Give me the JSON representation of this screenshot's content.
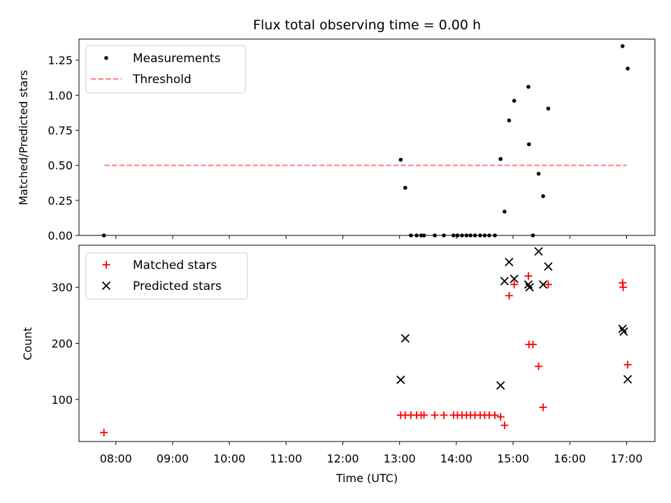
{
  "colors": {
    "measure": "#000000",
    "threshold": "#ff7f7f",
    "matched": "#ff0000",
    "predicted": "#000000"
  },
  "chart_data": [
    {
      "type": "scatter",
      "title": "Flux total observing time = 0.00 h",
      "ylabel": "Matched/Predicted stars",
      "ylim": [
        0,
        1.4
      ],
      "xlim_hours": [
        7.35,
        17.5
      ],
      "yticks": [
        0.0,
        0.25,
        0.5,
        0.75,
        1.0,
        1.25
      ],
      "ytick_labels": [
        "0.00",
        "0.25",
        "0.50",
        "0.75",
        "1.00",
        "1.25"
      ],
      "legend": {
        "placement": "top-left",
        "entries": [
          "Measurements",
          "Threshold"
        ]
      },
      "threshold": {
        "name": "Threshold",
        "value": 0.5,
        "x_start": 7.8,
        "x_end": 17.0
      },
      "series": [
        {
          "name": "Measurements",
          "points": [
            [
              7.79,
              0.0
            ],
            [
              13.02,
              0.54
            ],
            [
              13.1,
              0.34
            ],
            [
              13.2,
              0.0
            ],
            [
              13.3,
              0.0
            ],
            [
              13.38,
              0.0
            ],
            [
              13.43,
              0.0
            ],
            [
              13.62,
              0.0
            ],
            [
              13.78,
              0.0
            ],
            [
              13.95,
              0.0
            ],
            [
              14.02,
              0.0
            ],
            [
              14.1,
              0.0
            ],
            [
              14.18,
              0.0
            ],
            [
              14.25,
              0.0
            ],
            [
              14.33,
              0.0
            ],
            [
              14.42,
              0.0
            ],
            [
              14.5,
              0.0
            ],
            [
              14.58,
              0.0
            ],
            [
              14.68,
              0.0
            ],
            [
              14.78,
              0.545
            ],
            [
              14.85,
              0.17
            ],
            [
              14.93,
              0.82
            ],
            [
              15.02,
              0.96
            ],
            [
              15.27,
              1.06
            ],
            [
              15.28,
              0.65
            ],
            [
              15.35,
              0.0
            ],
            [
              15.45,
              0.44
            ],
            [
              15.53,
              0.28
            ],
            [
              15.62,
              0.905
            ],
            [
              16.93,
              1.35
            ],
            [
              17.02,
              1.19
            ]
          ]
        }
      ]
    },
    {
      "type": "scatter",
      "ylabel": "Count",
      "xlabel": "Time (UTC)",
      "ylim": [
        25,
        375
      ],
      "xlim_hours": [
        7.35,
        17.5
      ],
      "yticks": [
        100,
        200,
        300
      ],
      "ytick_labels": [
        "100",
        "200",
        "300"
      ],
      "xticks_hours": [
        8,
        9,
        10,
        11,
        12,
        13,
        14,
        15,
        16,
        17
      ],
      "xtick_labels": [
        "08:00",
        "09:00",
        "10:00",
        "11:00",
        "12:00",
        "13:00",
        "14:00",
        "15:00",
        "16:00",
        "17:00"
      ],
      "legend": {
        "placement": "top-left",
        "entries": [
          "Matched stars",
          "Predicted stars"
        ]
      },
      "series": [
        {
          "name": "Matched stars",
          "points": [
            [
              7.79,
              41
            ],
            [
              13.02,
              72
            ],
            [
              13.1,
              72
            ],
            [
              13.2,
              72
            ],
            [
              13.3,
              72
            ],
            [
              13.38,
              72
            ],
            [
              13.43,
              72
            ],
            [
              13.62,
              72
            ],
            [
              13.78,
              72
            ],
            [
              13.95,
              72
            ],
            [
              14.02,
              72
            ],
            [
              14.1,
              72
            ],
            [
              14.18,
              72
            ],
            [
              14.25,
              72
            ],
            [
              14.33,
              72
            ],
            [
              14.42,
              72
            ],
            [
              14.5,
              72
            ],
            [
              14.58,
              72
            ],
            [
              14.68,
              72
            ],
            [
              14.78,
              69
            ],
            [
              14.85,
              54
            ],
            [
              14.93,
              285
            ],
            [
              15.02,
              305
            ],
            [
              15.27,
              320
            ],
            [
              15.28,
              198
            ],
            [
              15.35,
              198
            ],
            [
              15.45,
              159
            ],
            [
              15.53,
              86
            ],
            [
              15.62,
              305
            ],
            [
              16.93,
              308
            ],
            [
              16.94,
              300
            ],
            [
              17.02,
              162
            ]
          ]
        },
        {
          "name": "Predicted stars",
          "points": [
            [
              13.02,
              135
            ],
            [
              13.1,
              209
            ],
            [
              14.78,
              125
            ],
            [
              14.85,
              311
            ],
            [
              14.93,
              345
            ],
            [
              15.02,
              315
            ],
            [
              15.27,
              305
            ],
            [
              15.29,
              300
            ],
            [
              15.45,
              364
            ],
            [
              15.53,
              305
            ],
            [
              15.62,
              337
            ],
            [
              16.93,
              226
            ],
            [
              16.95,
              221
            ],
            [
              17.02,
              136
            ]
          ]
        }
      ]
    }
  ]
}
